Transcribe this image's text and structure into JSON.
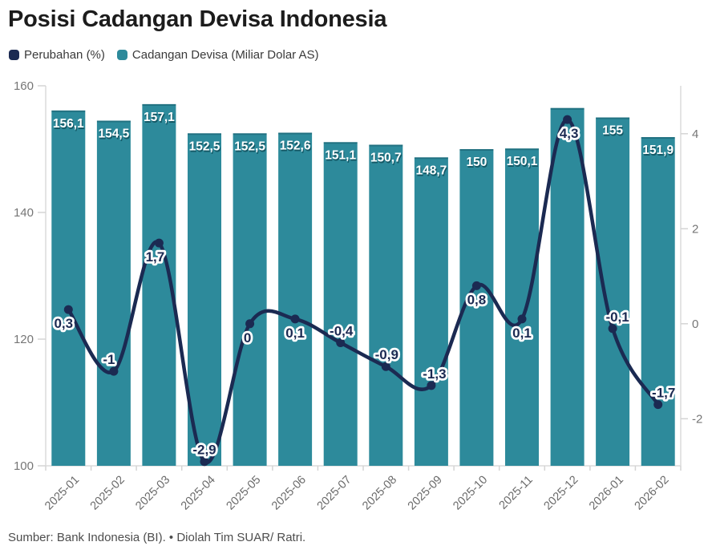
{
  "title": "Posisi Cadangan Devisa Indonesia",
  "legend": [
    {
      "label": "Perubahan (%)",
      "color": "#1b2a52"
    },
    {
      "label": "Cadangan Devisa (Miliar Dolar AS)",
      "color": "#2d8a9b"
    }
  ],
  "footer": "Sumber: Bank Indonesia (BI). • Diolah Tim SUAR/ Ratri.",
  "colors": {
    "bar": "#2d8a9b",
    "line": "#1b2a52"
  },
  "chart_data": {
    "type": "combo",
    "categories": [
      "2025-01",
      "2025-02",
      "2025-03",
      "2025-04",
      "2025-05",
      "2025-06",
      "2025-07",
      "2025-08",
      "2025-09",
      "2025-10",
      "2025-11",
      "2025-12",
      "2026-01",
      "2026-02"
    ],
    "series": [
      {
        "name": "Cadangan Devisa (Miliar Dolar AS)",
        "type": "bar",
        "axis": "left",
        "color": "#2d8a9b",
        "values": [
          156.1,
          154.5,
          157.1,
          152.5,
          152.5,
          152.6,
          151.1,
          150.7,
          148.7,
          150,
          150.1,
          156.5,
          155,
          151.9
        ],
        "labels": [
          "156,1",
          "154,5",
          "157,1",
          "152,5",
          "152,5",
          "152,6",
          "151,1",
          "150,7",
          "148,7",
          "150",
          "150,1",
          "",
          "155",
          "151,9"
        ]
      },
      {
        "name": "Perubahan (%)",
        "type": "line",
        "axis": "right",
        "color": "#1b2a52",
        "values": [
          0.3,
          -1,
          1.7,
          -2.9,
          0,
          0.1,
          -0.4,
          -0.9,
          -1.3,
          0.8,
          0.1,
          4.3,
          -0.1,
          -1.7
        ],
        "labels": [
          "0,3",
          "-1",
          "1,7",
          "-2,9",
          "0",
          "0,1",
          "-0,4",
          "-0,9",
          "-1,3",
          "0,8",
          "0,1",
          "4,3",
          "-0,1",
          "-1,7"
        ]
      }
    ],
    "left_axis": {
      "ticks": [
        160,
        140,
        120,
        100
      ],
      "range": [
        100,
        160
      ]
    },
    "right_axis": {
      "ticks": [
        4,
        2,
        0,
        -2
      ],
      "range": [
        -2.99,
        5.01
      ]
    },
    "grid": false,
    "legend_position": "top-left"
  }
}
